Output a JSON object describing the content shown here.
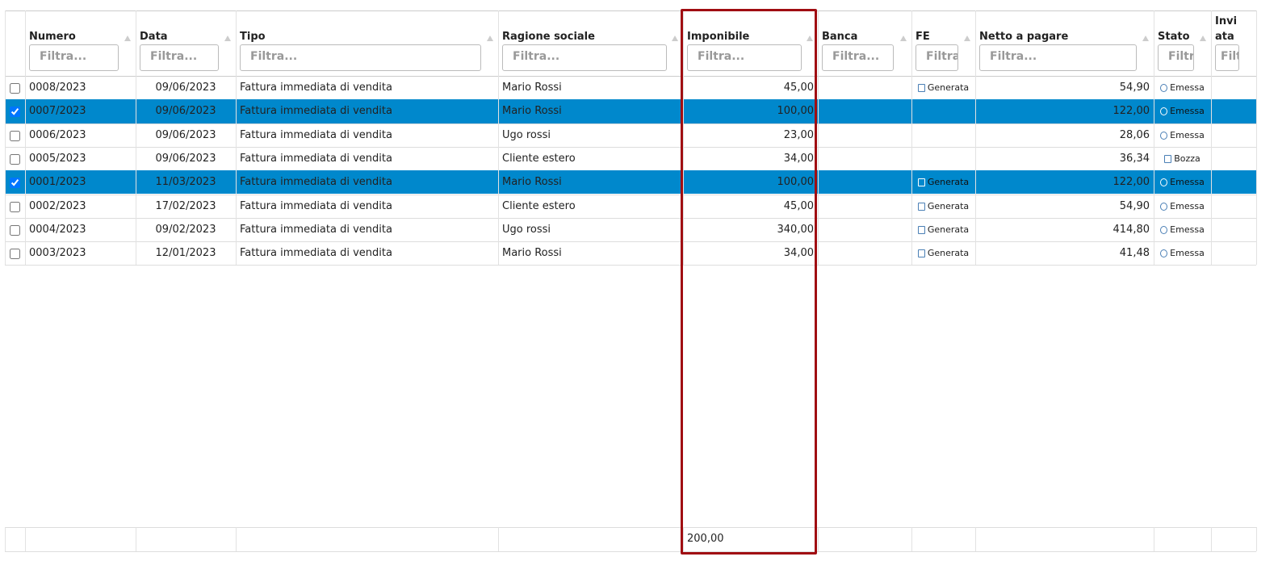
{
  "table": {
    "columns": [
      "Numero",
      "Data",
      "Tipo",
      "Ragione sociale",
      "Imponibile",
      "Banca",
      "FE",
      "Netto a pagare",
      "Stato",
      "Inviata"
    ],
    "filter_placeholder": "Filtra...",
    "highlighted_column": 4,
    "rows": [
      {
        "selected": false,
        "cells": {
          "0": "0008/2023",
          "1": "09/06/2023",
          "2": "Fattura immediata di vendita",
          "3": "Mario Rossi",
          "4": "45,00",
          "6": "Generata",
          "7": "54,90",
          "8": "Emessa"
        }
      },
      {
        "selected": true,
        "cells": {
          "0": "0007/2023",
          "1": "09/06/2023",
          "2": "Fattura immediata di vendita",
          "3": "Mario Rossi",
          "4": "100,00",
          "7": "122,00",
          "8": "Emessa"
        }
      },
      {
        "selected": false,
        "cells": {
          "0": "0006/2023",
          "1": "09/06/2023",
          "2": "Fattura immediata di vendita",
          "3": "Ugo rossi",
          "4": "23,00",
          "7": "28,06",
          "8": "Emessa"
        }
      },
      {
        "selected": false,
        "cells": {
          "0": "0005/2023",
          "1": "09/06/2023",
          "2": "Fattura immediata di vendita",
          "3": "Cliente estero",
          "4": "34,00",
          "7": "36,34",
          "8": "Bozza"
        }
      },
      {
        "selected": true,
        "cells": {
          "0": "0001/2023",
          "1": "11/03/2023",
          "2": "Fattura immediata di vendita",
          "3": "Mario Rossi",
          "4": "100,00",
          "6": "Generata",
          "7": "122,00",
          "8": "Emessa"
        }
      },
      {
        "selected": false,
        "cells": {
          "0": "0002/2023",
          "1": "17/02/2023",
          "2": "Fattura immediata di vendita",
          "3": "Cliente estero",
          "4": "45,00",
          "6": "Generata",
          "7": "54,90",
          "8": "Emessa"
        }
      },
      {
        "selected": false,
        "cells": {
          "0": "0004/2023",
          "1": "09/02/2023",
          "2": "Fattura immediata di vendita",
          "3": "Ugo rossi",
          "4": "340,00",
          "6": "Generata",
          "7": "414,80",
          "8": "Emessa"
        }
      },
      {
        "selected": false,
        "cells": {
          "0": "0003/2023",
          "1": "12/01/2023",
          "2": "Fattura immediata di vendita",
          "3": "Mario Rossi",
          "4": "34,00",
          "6": "Generata",
          "7": "41,48",
          "8": "Emessa"
        }
      }
    ],
    "footer": {
      "4": "200,00"
    }
  }
}
